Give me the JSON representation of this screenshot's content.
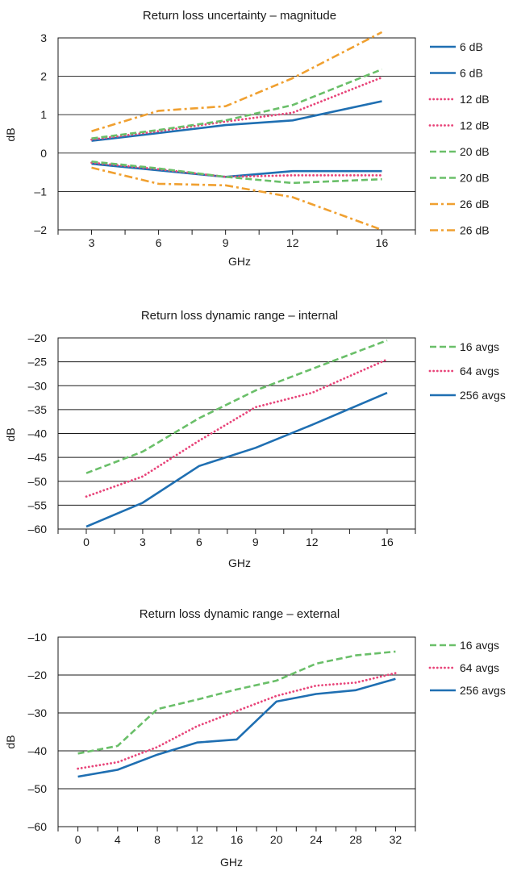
{
  "charts": [
    {
      "title": "Return loss uncertainty – magnitude",
      "xlabel": "GHz",
      "ylabel": "dB"
    },
    {
      "title": "Return loss dynamic range – internal",
      "xlabel": "GHz",
      "ylabel": "dB"
    },
    {
      "title": "Return loss dynamic range – external",
      "xlabel": "GHz",
      "ylabel": "dB"
    }
  ],
  "colors": {
    "blue": "#1f6fb2",
    "pink": "#e8457a",
    "green": "#6abf69",
    "orange": "#f0a030",
    "axis": "#1a1a1a",
    "grid": "#1a1a1a"
  },
  "chart_data": [
    {
      "type": "line",
      "title": "Return loss uncertainty – magnitude",
      "xlabel": "GHz",
      "ylabel": "dB",
      "x": [
        3,
        6,
        9,
        12,
        16
      ],
      "xlim": [
        1.5,
        17.5
      ],
      "ylim": [
        -2,
        3
      ],
      "xticks": [
        3,
        6,
        9,
        12,
        16
      ],
      "yticks": [
        3,
        2,
        1,
        0,
        -1,
        -2
      ],
      "ytick_labels": [
        "3",
        "2",
        "1",
        "0",
        "–1",
        "–2"
      ],
      "grid": "horizontal",
      "legend": "right",
      "series": [
        {
          "name": "6 dB",
          "style": "solid",
          "color": "#1f6fb2",
          "values": [
            0.32,
            0.52,
            0.73,
            0.85,
            1.35
          ]
        },
        {
          "name": "6 dB",
          "style": "solid",
          "color": "#1f6fb2",
          "values": [
            -0.28,
            -0.45,
            -0.62,
            -0.47,
            -0.47
          ]
        },
        {
          "name": "12 dB",
          "style": "dotted",
          "color": "#e8457a",
          "values": [
            0.35,
            0.57,
            0.82,
            1.05,
            1.97
          ]
        },
        {
          "name": "12 dB",
          "style": "dotted",
          "color": "#e8457a",
          "values": [
            -0.25,
            -0.42,
            -0.62,
            -0.58,
            -0.58
          ]
        },
        {
          "name": "20 dB",
          "style": "dashed",
          "color": "#6abf69",
          "values": [
            0.38,
            0.6,
            0.85,
            1.25,
            2.18
          ]
        },
        {
          "name": "20 dB",
          "style": "dashed",
          "color": "#6abf69",
          "values": [
            -0.22,
            -0.4,
            -0.62,
            -0.78,
            -0.68
          ]
        },
        {
          "name": "26 dB",
          "style": "dashdot",
          "color": "#f0a030",
          "values": [
            0.57,
            1.1,
            1.22,
            1.95,
            3.15
          ]
        },
        {
          "name": "26 dB",
          "style": "dashdot",
          "color": "#f0a030",
          "values": [
            -0.38,
            -0.8,
            -0.84,
            -1.15,
            -2.0
          ]
        }
      ]
    },
    {
      "type": "line",
      "title": "Return loss dynamic range – internal",
      "xlabel": "GHz",
      "ylabel": "dB",
      "x": [
        0,
        3,
        6,
        9,
        12,
        16
      ],
      "xlim": [
        -1.5,
        17.5
      ],
      "ylim": [
        -60,
        -20
      ],
      "xticks": [
        0,
        3,
        6,
        9,
        12,
        16
      ],
      "yticks": [
        -20,
        -25,
        -30,
        -35,
        -40,
        -45,
        -50,
        -55,
        -60
      ],
      "ytick_labels": [
        "–20",
        "–25",
        "–30",
        "–35",
        "–40",
        "–45",
        "–50",
        "–55",
        "–60"
      ],
      "grid": "horizontal",
      "legend": "right",
      "series": [
        {
          "name": "16 avgs",
          "style": "dashed",
          "color": "#6abf69",
          "values": [
            -48.3,
            -43.8,
            -36.8,
            -31.0,
            -26.5,
            -20.5
          ]
        },
        {
          "name": "64 avgs",
          "style": "dotted",
          "color": "#e8457a",
          "values": [
            -53.2,
            -49.0,
            -41.5,
            -34.5,
            -31.5,
            -24.5
          ]
        },
        {
          "name": "256 avgs",
          "style": "solid",
          "color": "#1f6fb2",
          "values": [
            -59.5,
            -54.5,
            -46.8,
            -43.0,
            -38.2,
            -31.5
          ]
        }
      ]
    },
    {
      "type": "line",
      "title": "Return loss dynamic range – external",
      "xlabel": "GHz",
      "ylabel": "dB",
      "x": [
        0,
        4,
        8,
        12,
        16,
        20,
        24,
        28,
        32
      ],
      "xlim": [
        -2,
        34
      ],
      "ylim": [
        -60,
        -10
      ],
      "xticks": [
        0,
        4,
        8,
        12,
        16,
        20,
        24,
        28,
        32
      ],
      "yticks": [
        -10,
        -20,
        -30,
        -40,
        -50,
        -60
      ],
      "ytick_labels": [
        "–10",
        "–20",
        "–30",
        "–40",
        "–50",
        "–60"
      ],
      "grid": "horizontal",
      "legend": "right",
      "series": [
        {
          "name": "16 avgs",
          "style": "dashed",
          "color": "#6abf69",
          "values": [
            -40.7,
            -38.7,
            -29.0,
            -26.5,
            -23.8,
            -21.5,
            -17.0,
            -14.8,
            -13.8
          ]
        },
        {
          "name": "64 avgs",
          "style": "dotted",
          "color": "#e8457a",
          "values": [
            -44.7,
            -43.0,
            -39.0,
            -33.5,
            -29.5,
            -25.5,
            -22.8,
            -22.0,
            -19.5
          ]
        },
        {
          "name": "256 avgs",
          "style": "solid",
          "color": "#1f6fb2",
          "values": [
            -46.8,
            -45.0,
            -41.0,
            -37.8,
            -37.0,
            -27.0,
            -25.0,
            -24.0,
            -21.0
          ]
        }
      ]
    }
  ]
}
